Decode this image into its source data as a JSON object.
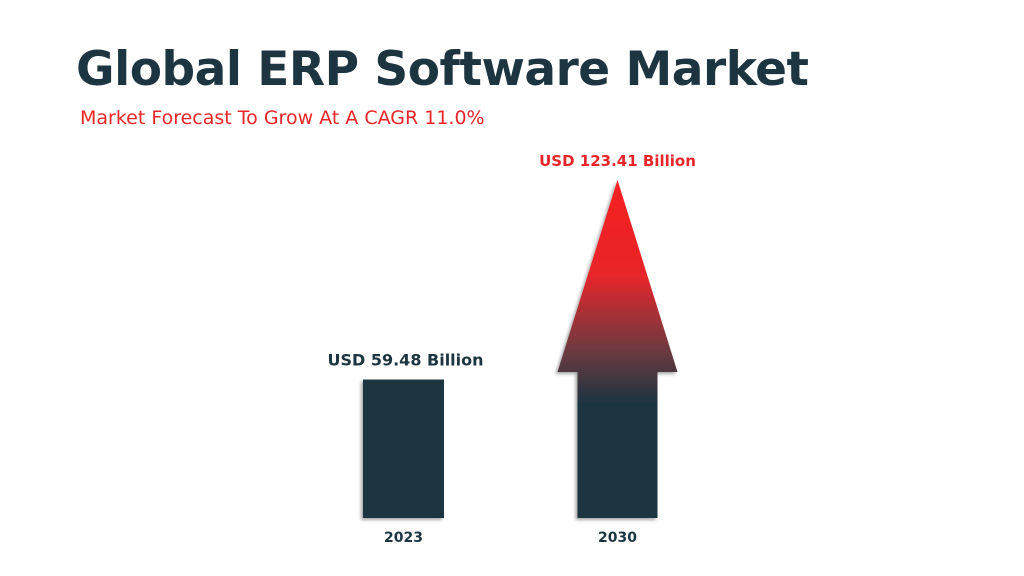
{
  "title": "Global ERP Software Market",
  "subtitle": "Market Forecast To Grow At A CAGR 11.0%",
  "colors": {
    "dark": "#1d3540",
    "accent": "#f52020",
    "title": "#1d3540",
    "subtitle": "#e8262a"
  },
  "chart_data": {
    "type": "bar",
    "title": "Global ERP Software Market",
    "categories": [
      "2023",
      "2030"
    ],
    "values": [
      59.48,
      123.41
    ],
    "unit": "USD Billion",
    "data_labels": [
      "USD 59.48 Billion",
      "USD 123.41 Billion"
    ],
    "cagr_label": "Market Forecast To Grow At A CAGR 11.0%",
    "grid": false,
    "legend": "none"
  }
}
